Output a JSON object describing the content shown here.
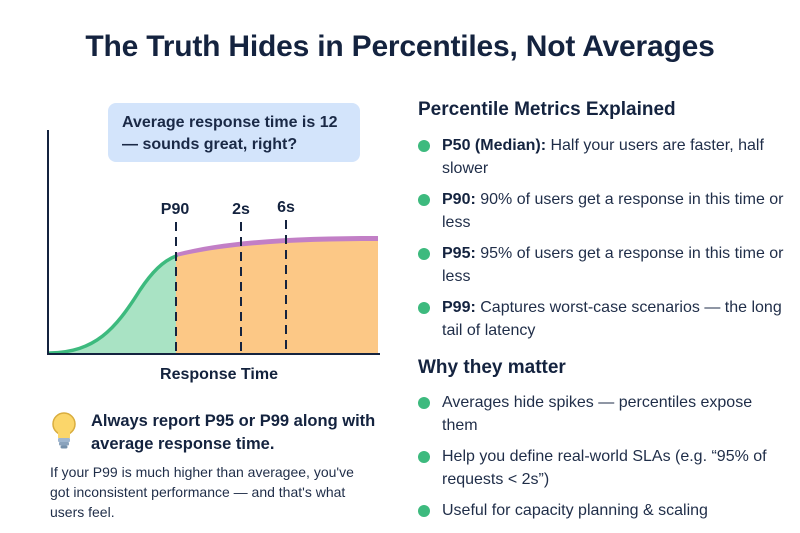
{
  "title": "The Truth Hides in Percentiles, Not Averages",
  "callout": {
    "text": "Average response time is 12 — sounds great, right?"
  },
  "chart": {
    "markers": [
      "P90",
      "2s",
      "6s"
    ],
    "axis_label": "Response Time"
  },
  "chart_data": {
    "type": "area",
    "title": "",
    "xlabel": "Response Time",
    "ylabel": "",
    "markers": [
      {
        "label": "P90"
      },
      {
        "label": "2s"
      },
      {
        "label": "6s"
      }
    ],
    "regions": [
      {
        "name": "Below P90",
        "color": "#a9e3c4"
      },
      {
        "name": "Above P90",
        "color": "#fcc886"
      }
    ],
    "grid": false
  },
  "tip": {
    "headline": "Always report P95 or P99 along with average response time.",
    "body": "If your P99 is much higher than averagee, you've got inconsistent performance — and that's what users feel."
  },
  "percentiles": {
    "heading": "Percentile Metrics Explained",
    "items": [
      {
        "term": "P50 (Median):",
        "desc": " Half your users are faster, half slower"
      },
      {
        "term": "P90:",
        "desc": " 90% of users get a response in this time or less"
      },
      {
        "term": "P95:",
        "desc": " 95% of users get a response in this time or less"
      },
      {
        "term": "P99:",
        "desc": " Captures worst-case scenarios — the long tail of latency"
      }
    ]
  },
  "why": {
    "heading": "Why they matter",
    "items": [
      "Averages hide spikes — percentiles expose them",
      "Help you define real-world SLAs (e.g. “95% of requests < 2s”)",
      "Useful for capacity planning & scaling"
    ]
  },
  "colors": {
    "accent_green": "#3dba7e",
    "fill_green": "#a9e3c4",
    "fill_orange": "#fcc886",
    "tail_purple": "#c27fc6",
    "callout_bg": "#d3e4fb",
    "text_dark": "#14233f"
  }
}
